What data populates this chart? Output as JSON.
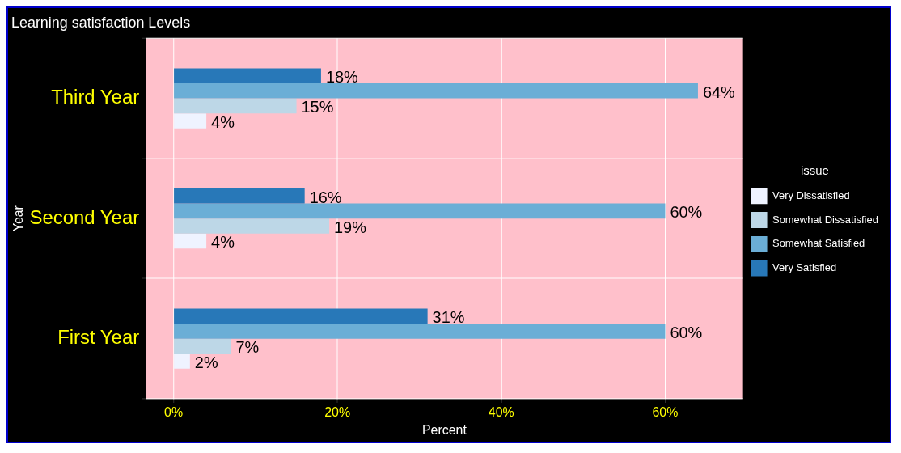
{
  "chart_data": {
    "type": "bar",
    "orientation": "horizontal",
    "title": "Learning satisfaction Levels",
    "xlabel": "Percent",
    "ylabel": "Year",
    "legend_title": "issue",
    "legend": "right",
    "categories": [
      "Third Year",
      "Second Year",
      "First Year"
    ],
    "series": [
      {
        "name": "Very Dissatisfied",
        "color": "#eff3ff",
        "values": [
          4,
          4,
          2
        ],
        "value_labels": [
          "4%",
          "4%",
          "2%"
        ]
      },
      {
        "name": "Somewhat Dissatisfied",
        "color": "#bdd7e7",
        "values": [
          15,
          19,
          7
        ],
        "value_labels": [
          "15%",
          "19%",
          "7%"
        ]
      },
      {
        "name": "Somewhat Satisfied",
        "color": "#6baed6",
        "values": [
          64,
          60,
          60
        ],
        "value_labels": [
          "64%",
          "60%",
          "60%"
        ]
      },
      {
        "name": "Very Satisfied",
        "color": "#2878b8",
        "values": [
          18,
          16,
          31
        ],
        "value_labels": [
          "18%",
          "16%",
          "31%"
        ]
      }
    ],
    "xlim": [
      -3.4,
      69.5
    ],
    "xticks": [
      {
        "value": 0,
        "label": "0%"
      },
      {
        "value": 20,
        "label": "20%"
      },
      {
        "value": 40,
        "label": "40%"
      },
      {
        "value": 60,
        "label": "60%"
      }
    ],
    "grid": true
  }
}
